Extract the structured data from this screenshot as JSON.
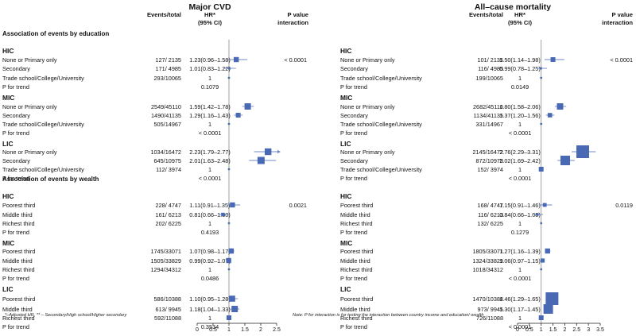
{
  "footnotes": {
    "left": "*–Adjusted HR, ** – Secondary/High school/Higher secondary",
    "right": "Note: P for interaction is for testing the interaction between country income and education/ wealth"
  },
  "section_labels": {
    "education": "Association of events by education",
    "wealth": "Association of events by wealth"
  },
  "colors": {
    "marker": "#4a69b5",
    "ci": "#6f88c6",
    "axis": "#222222",
    "refline": "#888888"
  },
  "chart_data": [
    {
      "type": "forest",
      "title": "Major CVD",
      "column_headers": {
        "events": "Events/total",
        "hr_line1": "HR*",
        "hr_line2": "(95% CI)",
        "p_line1": "P value",
        "p_line2": "interaction"
      },
      "xlim": [
        0,
        2.5
      ],
      "xticks": [
        0,
        0.5,
        1,
        1.5,
        2,
        2.5
      ],
      "xtick_labels": [
        "0",
        "0.5",
        "1",
        "1.5",
        "2",
        "2.5"
      ],
      "reference_line": 1,
      "rows": [
        {
          "kind": "group",
          "label": "HIC"
        },
        {
          "kind": "item",
          "label": "None or Primary only",
          "events": "127/ 2135",
          "hr_text": "1.23(0.96–1.58)",
          "hr": 1.23,
          "lo": 0.96,
          "hi": 1.58,
          "size": 3.2,
          "p_interaction": "< 0.0001"
        },
        {
          "kind": "item",
          "label": "Secondary",
          "events": "171/ 4985",
          "hr_text": "1.01(0.83–1.22)",
          "hr": 1.01,
          "lo": 0.83,
          "hi": 1.22,
          "size": 1.5
        },
        {
          "kind": "ref",
          "label": "Trade school/College/University",
          "events": "293/10065",
          "hr_text": "1",
          "hr": 1
        },
        {
          "kind": "trend",
          "label": "P for trend",
          "value": "0.1079"
        },
        {
          "kind": "group",
          "label": "MIC"
        },
        {
          "kind": "item",
          "label": "None or Primary only",
          "events": "2549/45110",
          "hr_text": "1.59(1.42–1.78)",
          "hr": 1.59,
          "lo": 1.42,
          "hi": 1.78,
          "size": 4
        },
        {
          "kind": "item",
          "label": "Secondary",
          "events": "1490/41135",
          "hr_text": "1.29(1.16–1.43)",
          "hr": 1.29,
          "lo": 1.16,
          "hi": 1.43,
          "size": 3
        },
        {
          "kind": "ref",
          "label": "Trade school/College/University",
          "events": "505/14967",
          "hr_text": "1",
          "hr": 1
        },
        {
          "kind": "trend",
          "label": "P for trend",
          "value": "< 0.0001"
        },
        {
          "kind": "group",
          "label": "LIC"
        },
        {
          "kind": "item",
          "label": "None or Primary only",
          "events": "1034/16472",
          "hr_text": "2.23(1.79–2.77)",
          "hr": 2.23,
          "lo": 1.79,
          "hi": 2.77,
          "size": 4.2,
          "arrow": true
        },
        {
          "kind": "item",
          "label": "Secondary",
          "events": "645/10975",
          "hr_text": "2.01(1.63–2.48)",
          "hr": 2.01,
          "lo": 1.63,
          "hi": 2.48,
          "size": 4.5
        },
        {
          "kind": "ref",
          "label": "Trade school/College/University",
          "events": "112/ 3974",
          "hr_text": "1",
          "hr": 1
        },
        {
          "kind": "trend",
          "label": "P for trend",
          "value": "< 0.0001"
        },
        {
          "kind": "section",
          "label": ""
        },
        {
          "kind": "group",
          "label": "HIC"
        },
        {
          "kind": "item",
          "label": "Poorest third",
          "events": "228/ 4747",
          "hr_text": "1.11(0.91–1.35)",
          "hr": 1.11,
          "lo": 0.91,
          "hi": 1.35,
          "size": 3.2,
          "p_interaction": "0.0021"
        },
        {
          "kind": "item",
          "label": "Middle third",
          "events": "161/ 6213",
          "hr_text": "0.81(0.66–1.00)",
          "hr": 0.81,
          "lo": 0.66,
          "hi": 1.0,
          "size": 2.2
        },
        {
          "kind": "ref",
          "label": "Richest third",
          "events": "202/ 6225",
          "hr_text": "1",
          "hr": 1
        },
        {
          "kind": "trend",
          "label": "P for trend",
          "value": "0.4193"
        },
        {
          "kind": "group",
          "label": "MIC"
        },
        {
          "kind": "item",
          "label": "Poorest third",
          "events": "1745/33071",
          "hr_text": "1.07(0.98–1.17)",
          "hr": 1.07,
          "lo": 0.98,
          "hi": 1.17,
          "size": 3.3
        },
        {
          "kind": "item",
          "label": "Middle third",
          "events": "1505/33829",
          "hr_text": "0.99(0.92–1.07)",
          "hr": 0.99,
          "lo": 0.92,
          "hi": 1.07,
          "size": 3.2
        },
        {
          "kind": "ref",
          "label": "Richest third",
          "events": "1294/34312",
          "hr_text": "1",
          "hr": 1
        },
        {
          "kind": "trend",
          "label": "P for trend",
          "value": "0.0486"
        },
        {
          "kind": "group",
          "label": "LIC"
        },
        {
          "kind": "item",
          "label": "Poorest third",
          "events": "586/10388",
          "hr_text": "1.10(0.95–1.28)",
          "hr": 1.1,
          "lo": 0.95,
          "hi": 1.28,
          "size": 3.8
        },
        {
          "kind": "item",
          "label": "Middle third",
          "events": "613/ 9945",
          "hr_text": "1.18(1.04–1.33)",
          "hr": 1.18,
          "lo": 1.04,
          "hi": 1.33,
          "size": 4
        },
        {
          "kind": "ref",
          "label": "Richest third",
          "events": "592/11088",
          "hr_text": "1",
          "hr": 1,
          "box": true
        },
        {
          "kind": "trend",
          "label": "P for trend",
          "value": "0.3534"
        }
      ]
    },
    {
      "type": "forest",
      "title": "All–cause mortality",
      "column_headers": {
        "events": "Events/total",
        "hr_line1": "HR*",
        "hr_line2": "(95% CI)",
        "p_line1": "P value",
        "p_line2": "interaction"
      },
      "xlim": [
        0,
        3.5
      ],
      "xticks": [
        0,
        0.5,
        1,
        1.5,
        2,
        2.5,
        3,
        3.5
      ],
      "xtick_labels": [
        "0",
        "0.5",
        "1",
        "1.5",
        "2",
        "2.5",
        "3",
        "3.5"
      ],
      "reference_line": 1,
      "rows": [
        {
          "kind": "group",
          "label": "HIC"
        },
        {
          "kind": "item",
          "label": "None or Primary only",
          "events": "101/ 2135",
          "hr_text": "1.50(1.14–1.98)",
          "hr": 1.5,
          "lo": 1.14,
          "hi": 1.98,
          "size": 3,
          "p_interaction": "< 0.0001"
        },
        {
          "kind": "item",
          "label": "Secondary",
          "events": "116/ 4985",
          "hr_text": "0.99(0.78–1.25)",
          "hr": 0.99,
          "lo": 0.78,
          "hi": 1.25,
          "size": 1.4
        },
        {
          "kind": "ref",
          "label": "Trade school/College/University",
          "events": "199/10065",
          "hr_text": "1",
          "hr": 1
        },
        {
          "kind": "trend",
          "label": "P for trend",
          "value": "0.0149"
        },
        {
          "kind": "group",
          "label": "MIC"
        },
        {
          "kind": "item",
          "label": "None or Primary only",
          "events": "2682/45110",
          "hr_text": "1.80(1.58–2.06)",
          "hr": 1.8,
          "lo": 1.58,
          "hi": 2.06,
          "size": 4
        },
        {
          "kind": "item",
          "label": "Secondary",
          "events": "1134/41135",
          "hr_text": "1.37(1.20–1.56)",
          "hr": 1.37,
          "lo": 1.2,
          "hi": 1.56,
          "size": 2.8
        },
        {
          "kind": "ref",
          "label": "Trade school/College/University",
          "events": "331/14967",
          "hr_text": "1",
          "hr": 1
        },
        {
          "kind": "trend",
          "label": "P for trend",
          "value": "< 0.0001"
        },
        {
          "kind": "group",
          "label": "LIC"
        },
        {
          "kind": "item",
          "label": "None or Primary only",
          "events": "2145/16472",
          "hr_text": "2.76(2.29–3.31)",
          "hr": 2.76,
          "lo": 2.29,
          "hi": 3.31,
          "size": 8
        },
        {
          "kind": "item",
          "label": "Secondary",
          "events": "872/10975",
          "hr_text": "2.02(1.69–2.42)",
          "hr": 2.02,
          "lo": 1.69,
          "hi": 2.42,
          "size": 6
        },
        {
          "kind": "ref",
          "label": "Trade school/College/University",
          "events": "152/ 3974",
          "hr_text": "1",
          "hr": 1,
          "box": true
        },
        {
          "kind": "trend",
          "label": "P for trend",
          "value": "< 0.0001"
        },
        {
          "kind": "section",
          "label": ""
        },
        {
          "kind": "group",
          "label": "HIC"
        },
        {
          "kind": "item",
          "label": "Poorest third",
          "events": "168/ 4747",
          "hr_text": "1.15(0.91–1.46)",
          "hr": 1.15,
          "lo": 0.91,
          "hi": 1.46,
          "size": 2.4,
          "p_interaction": "0.0119"
        },
        {
          "kind": "item",
          "label": "Middle third",
          "events": "116/ 6213",
          "hr_text": "0.84(0.66–1.08)",
          "hr": 0.84,
          "lo": 0.66,
          "hi": 1.08,
          "size": 1.6
        },
        {
          "kind": "ref",
          "label": "Richest third",
          "events": "132/ 6225",
          "hr_text": "1",
          "hr": 1
        },
        {
          "kind": "trend",
          "label": "P for trend",
          "value": "0.1279"
        },
        {
          "kind": "group",
          "label": "MIC"
        },
        {
          "kind": "item",
          "label": "Poorest third",
          "events": "1805/33071",
          "hr_text": "1.27(1.16–1.39)",
          "hr": 1.27,
          "lo": 1.16,
          "hi": 1.39,
          "size": 3.2
        },
        {
          "kind": "item",
          "label": "Middle third",
          "events": "1324/33829",
          "hr_text": "1.06(0.97–1.15)",
          "hr": 1.06,
          "lo": 0.97,
          "hi": 1.15,
          "size": 2.6
        },
        {
          "kind": "ref",
          "label": "Richest third",
          "events": "1018/34312",
          "hr_text": "1",
          "hr": 1
        },
        {
          "kind": "trend",
          "label": "P for trend",
          "value": "< 0.0001"
        },
        {
          "kind": "group",
          "label": "LIC"
        },
        {
          "kind": "item",
          "label": "Poorest third",
          "events": "1470/10388",
          "hr_text": "1.46(1.29–1.65)",
          "hr": 1.46,
          "lo": 1.29,
          "hi": 1.65,
          "size": 8
        },
        {
          "kind": "item",
          "label": "Middle third",
          "events": "973/ 9945",
          "hr_text": "1.30(1.17–1.45)",
          "hr": 1.3,
          "lo": 1.17,
          "hi": 1.45,
          "size": 6
        },
        {
          "kind": "ref",
          "label": "Richest third",
          "events": "726/11088",
          "hr_text": "1",
          "hr": 1,
          "box": true
        },
        {
          "kind": "trend",
          "label": "P for trend",
          "value": "< 0.0001"
        }
      ]
    }
  ]
}
